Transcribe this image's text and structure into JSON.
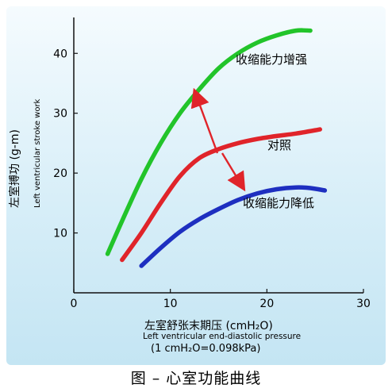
{
  "chart_data": {
    "type": "line",
    "title": "",
    "xlabel": "左室舒张末期压 (cmH₂O)",
    "xlabel_en": "Left ventricular end-diastolic pressure",
    "xlabel_unit": "(1 cmH₂O=0.098kPa)",
    "ylabel": "左室搏功 (g-m)",
    "ylabel_en": "Left ventricular stroke work",
    "xlim": [
      0,
      30
    ],
    "ylim": [
      0,
      46
    ],
    "xticks": [
      0,
      10,
      20,
      30
    ],
    "yticks": [
      10,
      20,
      30,
      40
    ],
    "grid": false,
    "series": [
      {
        "name": "收缩能力增强",
        "color": "#22c42a",
        "x": [
          3.5,
          5,
          7,
          9,
          11,
          13,
          15,
          17,
          19,
          21,
          23,
          24.5
        ],
        "y": [
          6.5,
          12,
          19,
          25,
          30,
          34,
          37.5,
          40,
          41.8,
          43,
          43.8,
          43.8
        ]
      },
      {
        "name": "对照",
        "color": "#e0242a",
        "x": [
          5,
          7,
          9,
          11,
          13,
          15,
          17,
          19,
          21,
          23,
          25.5
        ],
        "y": [
          5.5,
          10,
          15,
          19.5,
          22.5,
          24,
          25,
          25.7,
          26.2,
          26.6,
          27.3
        ]
      },
      {
        "name": "收缩能力降低",
        "color": "#1e2fc0",
        "x": [
          7,
          9,
          11,
          13,
          15,
          17,
          19,
          21,
          23,
          24.5,
          26
        ],
        "y": [
          4.5,
          7.5,
          10.2,
          12.3,
          14,
          15.5,
          16.6,
          17.3,
          17.6,
          17.5,
          17.1
        ]
      }
    ],
    "annotations": [
      "收缩能力增强",
      "对照",
      "收缩能力降低"
    ]
  },
  "caption": "图 – 心室功能曲线"
}
